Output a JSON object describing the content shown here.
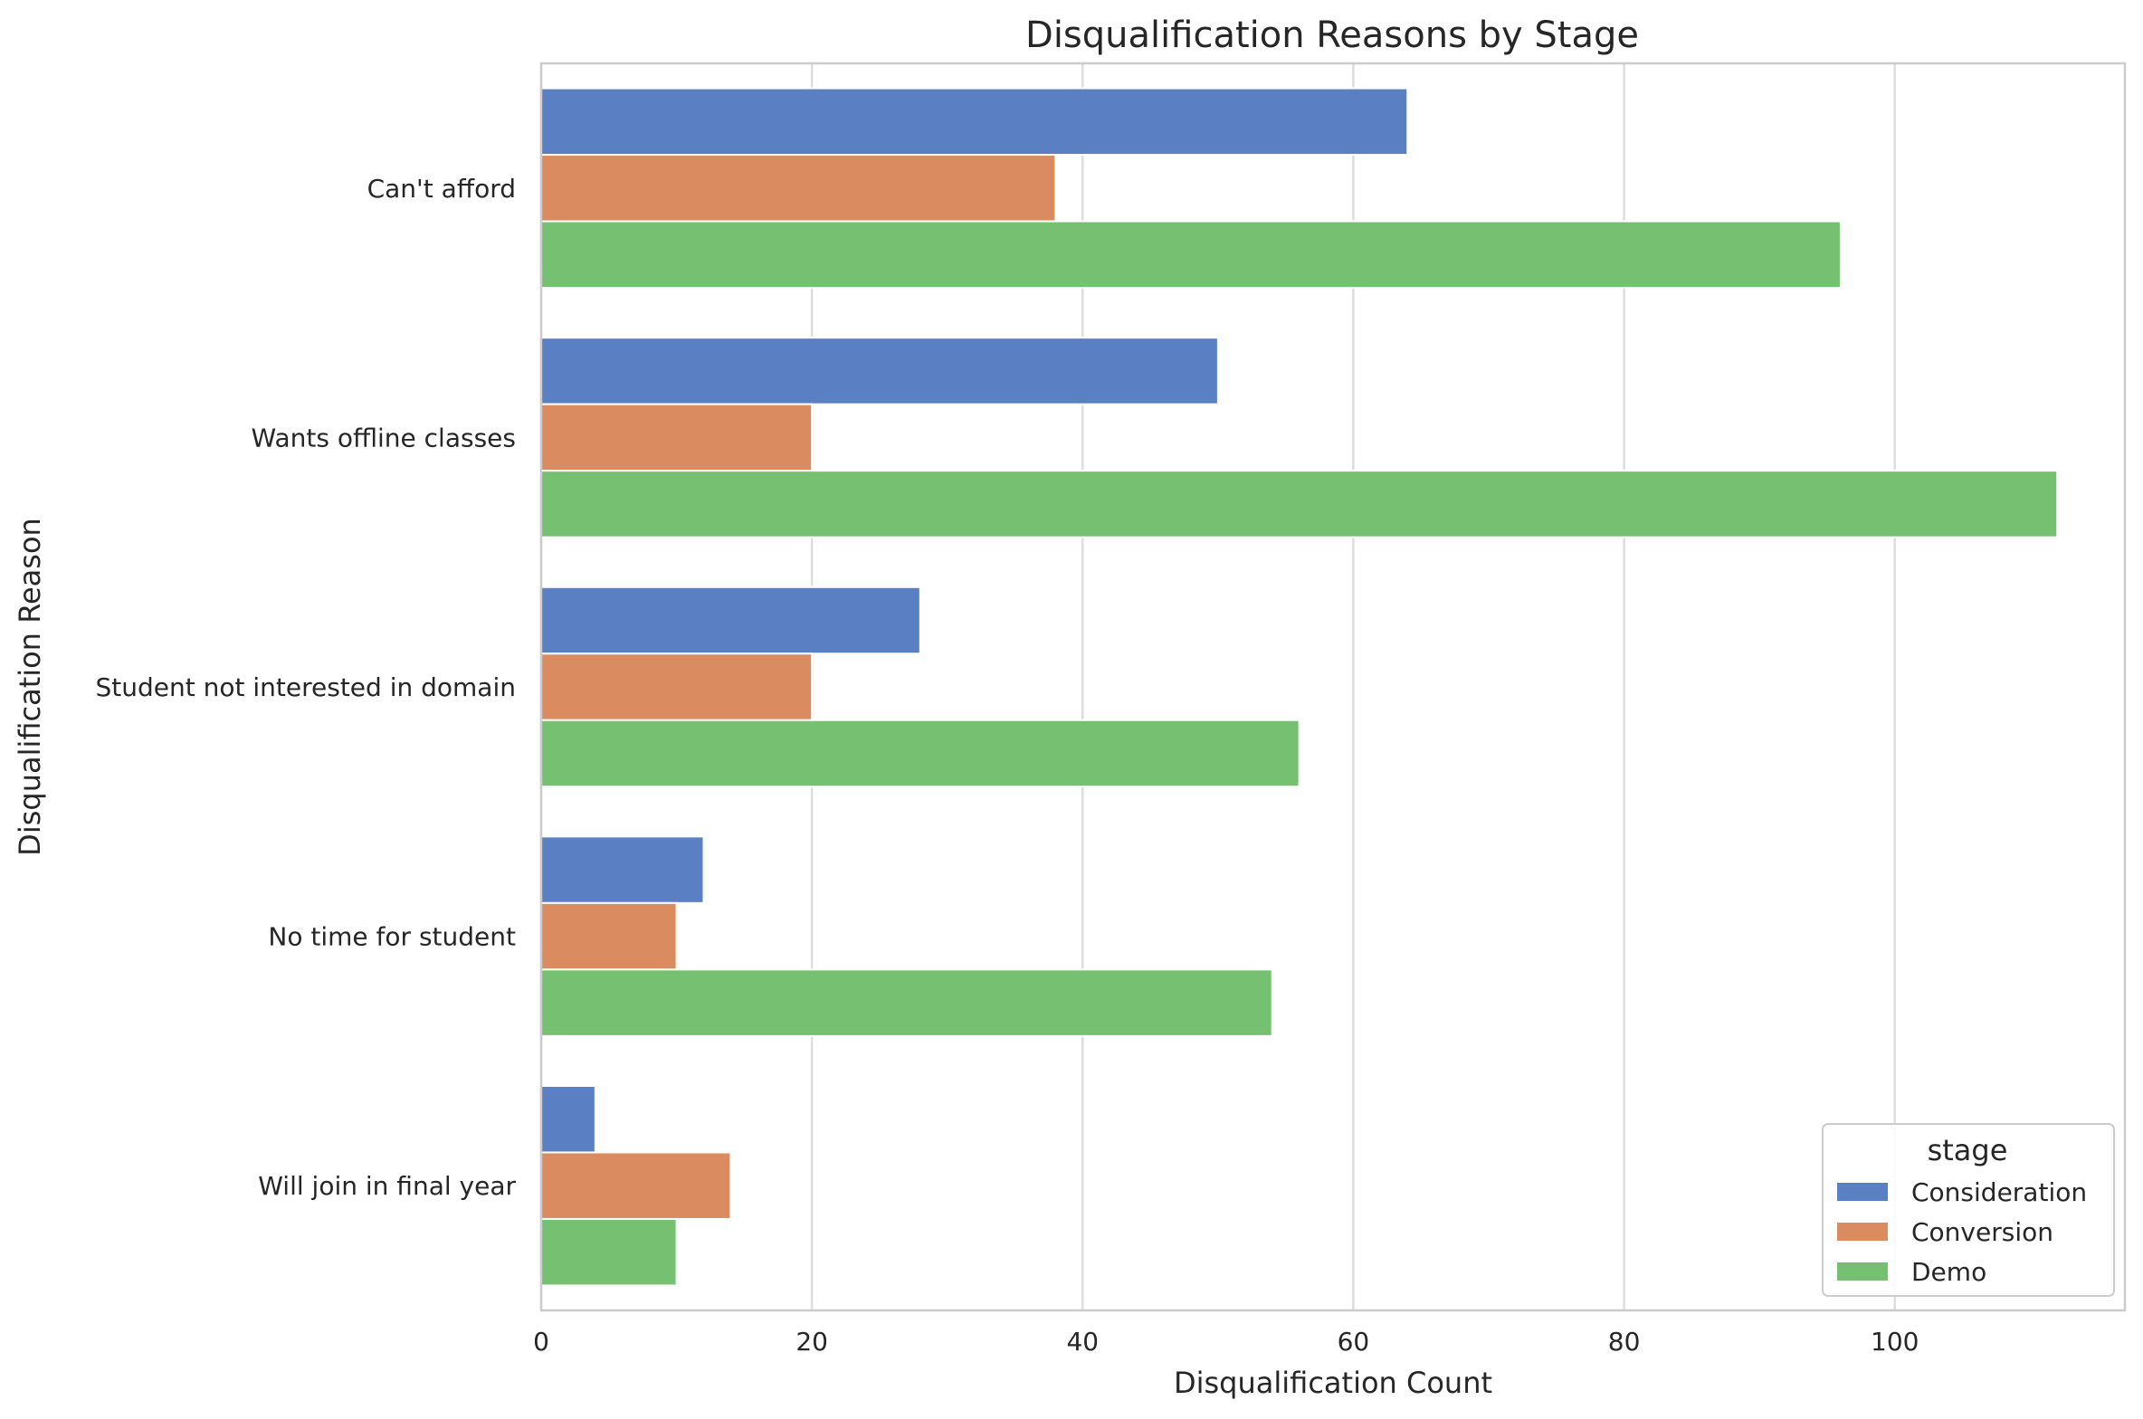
{
  "chart_data": {
    "type": "bar",
    "orientation": "horizontal",
    "title": "Disqualification Reasons by Stage",
    "xlabel": "Disqualification Count",
    "ylabel": "Disqualification Reason",
    "xlim": [
      0,
      117
    ],
    "x_ticks": [
      0,
      20,
      40,
      60,
      80,
      100
    ],
    "grid": true,
    "categories": [
      "Can't afford",
      "Wants offline classes",
      "Student not interested in domain",
      "No time for student",
      "Will join in final year"
    ],
    "series": [
      {
        "name": "Consideration",
        "color": "#5a7fc2",
        "values": [
          64,
          50,
          28,
          12,
          4
        ]
      },
      {
        "name": "Conversion",
        "color": "#db8b60",
        "values": [
          38,
          20,
          20,
          10,
          14
        ]
      },
      {
        "name": "Demo",
        "color": "#76c171",
        "values": [
          96,
          112,
          56,
          54,
          10
        ]
      }
    ],
    "legend": {
      "title": "stage",
      "position": "lower-right"
    }
  }
}
